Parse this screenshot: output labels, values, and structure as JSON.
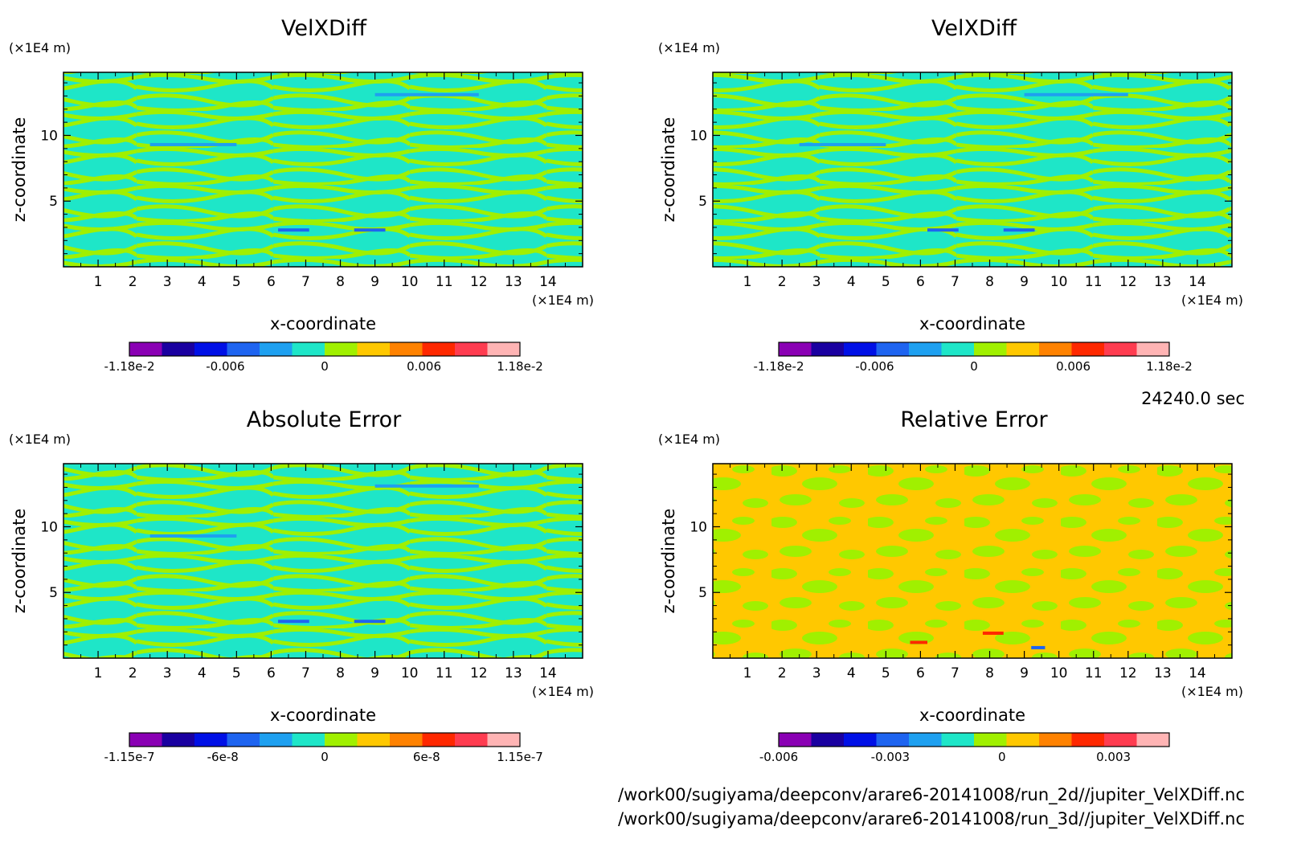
{
  "time_label": "24240.0 sec",
  "file_paths": [
    "/work00/sugiyama/deepconv/arare6-20141008/run_2d//jupiter_VelXDiff.nc",
    "/work00/sugiyama/deepconv/arare6-20141008/run_3d//jupiter_VelXDiff.nc"
  ],
  "colorbar_palette": [
    "#8a00b4",
    "#1a00a0",
    "#0010e6",
    "#1e64f0",
    "#1ea0f0",
    "#1ee6c8",
    "#a0f000",
    "#ffc800",
    "#ff8200",
    "#ff2800",
    "#ff3c50",
    "#ffb4b4"
  ],
  "field_colors": {
    "cyan": "#1ee6c8",
    "green": "#a0f000",
    "sky": "#1ea0f0",
    "yellow": "#ffc800",
    "orange": "#ff8200",
    "red": "#ff2800",
    "blue": "#1e64f0"
  },
  "chart_data": [
    {
      "type": "heatmap",
      "title": "VelXDiff",
      "xlabel": "x-coordinate",
      "ylabel": "z-coordinate",
      "x_unit": "(×1E4 m)",
      "y_unit": "(×1E4 m)",
      "xlim": [
        0,
        15
      ],
      "ylim": [
        0,
        14.8
      ],
      "x_ticks": [
        1,
        2,
        3,
        4,
        5,
        6,
        7,
        8,
        9,
        10,
        11,
        12,
        13,
        14
      ],
      "y_ticks": [
        5,
        10
      ],
      "colorbar": {
        "min": -0.0118,
        "max": 0.0118,
        "labels": [
          "-1.18e-2",
          "-0.006",
          "0",
          "0.006",
          "1.18e-2"
        ]
      },
      "pattern": "banded"
    },
    {
      "type": "heatmap",
      "title": "VelXDiff",
      "xlabel": "x-coordinate",
      "ylabel": "z-coordinate",
      "x_unit": "(×1E4 m)",
      "y_unit": "(×1E4 m)",
      "xlim": [
        0,
        15
      ],
      "ylim": [
        0,
        14.8
      ],
      "x_ticks": [
        1,
        2,
        3,
        4,
        5,
        6,
        7,
        8,
        9,
        10,
        11,
        12,
        13,
        14
      ],
      "y_ticks": [
        5,
        10
      ],
      "colorbar": {
        "min": -0.0118,
        "max": 0.0118,
        "labels": [
          "-1.18e-2",
          "-0.006",
          "0",
          "0.006",
          "1.18e-2"
        ]
      },
      "pattern": "banded"
    },
    {
      "type": "heatmap",
      "title": "Absolute Error",
      "xlabel": "x-coordinate",
      "ylabel": "z-coordinate",
      "x_unit": "(×1E4 m)",
      "y_unit": "(×1E4 m)",
      "xlim": [
        0,
        15
      ],
      "ylim": [
        0,
        14.8
      ],
      "x_ticks": [
        1,
        2,
        3,
        4,
        5,
        6,
        7,
        8,
        9,
        10,
        11,
        12,
        13,
        14
      ],
      "y_ticks": [
        5,
        10
      ],
      "colorbar": {
        "min": -1.15e-07,
        "max": 1.15e-07,
        "labels": [
          "-1.15e-7",
          "-6e-8",
          "0",
          "6e-8",
          "1.15e-7"
        ]
      },
      "pattern": "banded"
    },
    {
      "type": "heatmap",
      "title": "Relative Error",
      "xlabel": "x-coordinate",
      "ylabel": "z-coordinate",
      "x_unit": "(×1E4 m)",
      "y_unit": "(×1E4 m)",
      "xlim": [
        0,
        15
      ],
      "ylim": [
        0,
        14.8
      ],
      "x_ticks": [
        1,
        2,
        3,
        4,
        5,
        6,
        7,
        8,
        9,
        10,
        11,
        12,
        13,
        14
      ],
      "y_ticks": [
        5,
        10
      ],
      "colorbar": {
        "min": -0.006,
        "max": 0.0045,
        "labels": [
          "-0.006",
          "-0.003",
          "0",
          "0.003"
        ]
      },
      "pattern": "patchy"
    }
  ]
}
